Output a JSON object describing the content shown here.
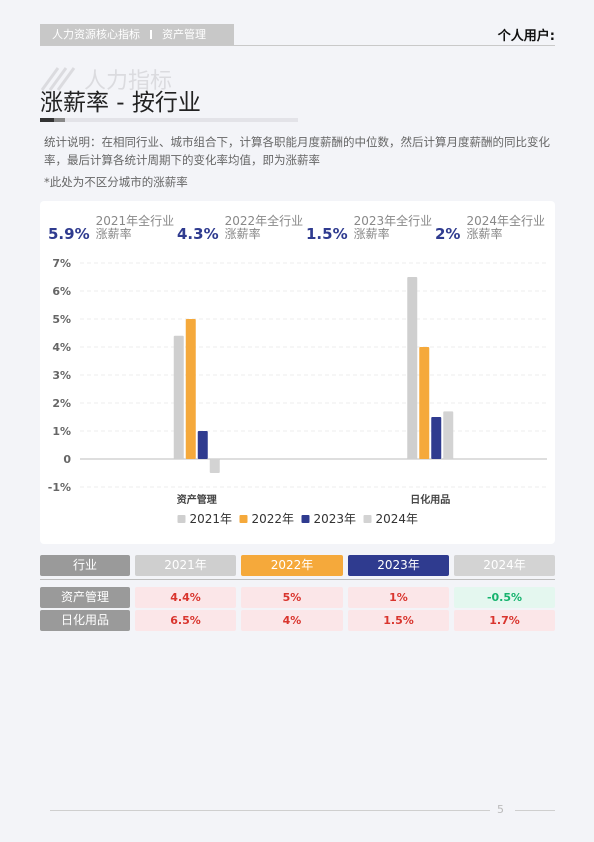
{
  "header": {
    "breadcrumb": [
      "人力资源核心指标",
      "资产管理"
    ],
    "user_label": "个人用户:"
  },
  "title": {
    "watermark_text": "人力指标",
    "main": "涨薪率 - 按行业"
  },
  "description": "统计说明：在相同行业、城市组合下，计算各职能月度薪酬的中位数，然后计算月度薪酬的同比变化率，最后计算各统计周期下的变化率均值，即为涨薪率",
  "note": "*此处为不区分城市的涨薪率",
  "kpis": [
    {
      "value": "5.9%",
      "label": "2021年全行业涨薪率"
    },
    {
      "value": "4.3%",
      "label": "2022年全行业涨薪率"
    },
    {
      "value": "1.5%",
      "label": "2023年全行业涨薪率"
    },
    {
      "value": "2%",
      "label": "2024年全行业涨薪率"
    }
  ],
  "colors": {
    "2021": "#cfcfcf",
    "2022": "#f5a93b",
    "2023": "#2f3b8f",
    "2024": "#d3d3d3",
    "header_industry": "#9a9a9a",
    "positive_cell_bg": "#fbe6e8",
    "positive_text": "#d9352e",
    "negative_cell_bg": "#e4f7ef",
    "negative_text": "#16b36e"
  },
  "chart_data": {
    "type": "bar",
    "categories": [
      "资产管理",
      "日化用品"
    ],
    "series": [
      {
        "name": "2021年",
        "values": [
          4.4,
          6.5
        ]
      },
      {
        "name": "2022年",
        "values": [
          5.0,
          4.0
        ]
      },
      {
        "name": "2023年",
        "values": [
          1.0,
          1.5
        ]
      },
      {
        "name": "2024年",
        "values": [
          -0.5,
          1.7
        ]
      }
    ],
    "yticks": [
      "7%",
      "6%",
      "5%",
      "4%",
      "3%",
      "2%",
      "1%",
      "0",
      "-1%"
    ],
    "ylim": [
      -1,
      7
    ],
    "grid": true,
    "legend_position": "bottom"
  },
  "table": {
    "headers": [
      "行业",
      "2021年",
      "2022年",
      "2023年",
      "2024年"
    ],
    "rows": [
      {
        "industry": "资产管理",
        "values": [
          "4.4%",
          "5%",
          "1%",
          "-0.5%"
        ]
      },
      {
        "industry": "日化用品",
        "values": [
          "6.5%",
          "4%",
          "1.5%",
          "1.7%"
        ]
      }
    ]
  },
  "footer": {
    "page_number": "5"
  }
}
